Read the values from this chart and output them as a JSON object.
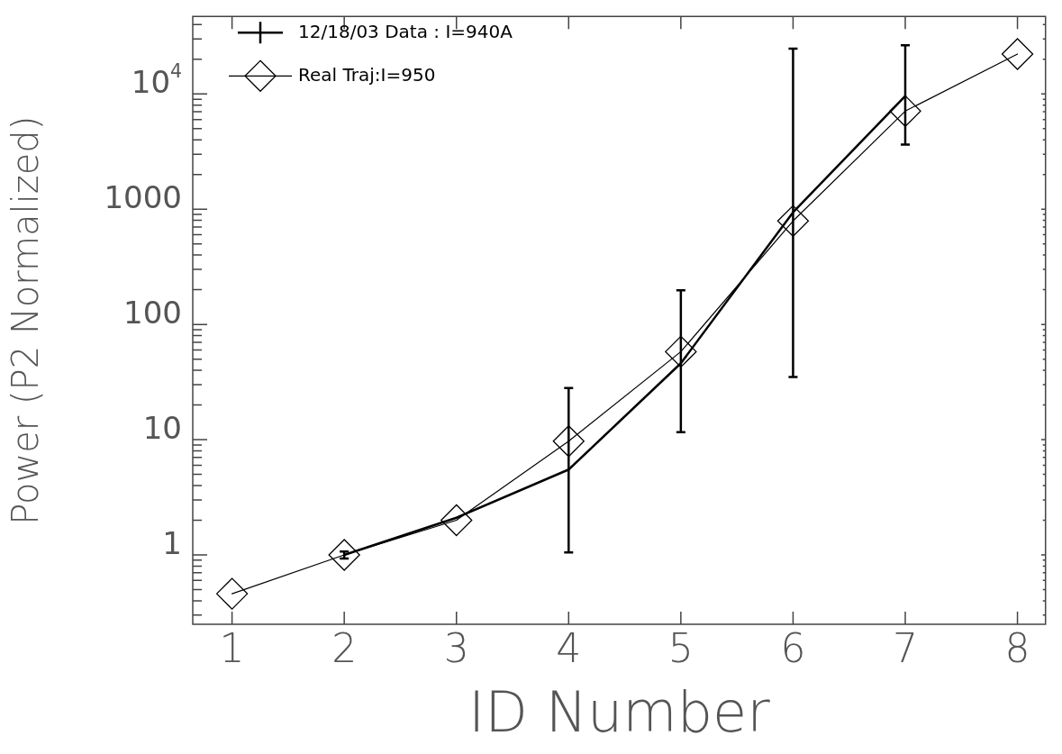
{
  "chart_data": {
    "type": "line",
    "xlabel": "ID Number",
    "ylabel": "Power (P2 Normalized)",
    "log": "y",
    "legend": "top left",
    "xlim": [
      0.65,
      8.25
    ],
    "xticks": [
      1,
      2,
      3,
      4,
      5,
      6,
      7,
      8
    ],
    "ylim": [
      0.25,
      47000
    ],
    "yticks": [
      {
        "value": 0.3,
        "label": null
      },
      {
        "value": 0.4,
        "label": null
      },
      {
        "value": 0.5,
        "label": null
      },
      {
        "value": 0.6,
        "label": null
      },
      {
        "value": 0.7,
        "label": null
      },
      {
        "value": 0.8,
        "label": null
      },
      {
        "value": 0.9,
        "label": null
      },
      1,
      {
        "value": 2,
        "label": null
      },
      {
        "value": 3,
        "label": null
      },
      {
        "value": 4,
        "label": null
      },
      {
        "value": 5,
        "label": null
      },
      {
        "value": 6,
        "label": null
      },
      {
        "value": 7,
        "label": null
      },
      {
        "value": 8,
        "label": null
      },
      {
        "value": 9,
        "label": null
      },
      10,
      {
        "value": 20,
        "label": null
      },
      {
        "value": 30,
        "label": null
      },
      {
        "value": 40,
        "label": null
      },
      {
        "value": 50,
        "label": null
      },
      {
        "value": 60,
        "label": null
      },
      {
        "value": 70,
        "label": null
      },
      {
        "value": 80,
        "label": null
      },
      {
        "value": 90,
        "label": null
      },
      100,
      {
        "value": 200,
        "label": null
      },
      {
        "value": 300,
        "label": null
      },
      {
        "value": 400,
        "label": null
      },
      {
        "value": 500,
        "label": null
      },
      {
        "value": 600,
        "label": null
      },
      {
        "value": 700,
        "label": null
      },
      {
        "value": 800,
        "label": null
      },
      {
        "value": 900,
        "label": null
      },
      1000,
      {
        "value": 2000,
        "label": null
      },
      {
        "value": 3000,
        "label": null
      },
      {
        "value": 4000,
        "label": null
      },
      {
        "value": 5000,
        "label": null
      },
      {
        "value": 6000,
        "label": null
      },
      {
        "value": 7000,
        "label": null
      },
      {
        "value": 8000,
        "label": null
      },
      {
        "value": 9000,
        "label": null
      },
      {
        "value": 10000,
        "label": "10$^{4}$"
      },
      {
        "value": 20000,
        "label": null
      },
      {
        "value": 30000,
        "label": null
      },
      {
        "value": 40000,
        "label": null
      }
    ],
    "series": [
      {
        "name": "12/18/03 Data : I=940A",
        "color": "#000000",
        "marker": "none",
        "x": [
          2,
          3,
          4,
          5,
          6,
          7
        ],
        "values": [
          1.0,
          2.1,
          5.5,
          46,
          940,
          9600
        ],
        "errors": [
          [
            0.93,
            1.07
          ],
          null,
          [
            1.05,
            28
          ],
          [
            11.6,
            198
          ],
          [
            35,
            24700
          ],
          [
            3640,
            26500
          ]
        ]
      },
      {
        "name": "Real Traj:I=950",
        "color": "#000000",
        "marker": "diamond",
        "x": [
          1,
          2,
          3,
          4,
          5,
          6,
          7,
          8
        ],
        "values": [
          0.46,
          1.0,
          2.0,
          9.7,
          58,
          790,
          7100,
          22200
        ]
      }
    ]
  }
}
